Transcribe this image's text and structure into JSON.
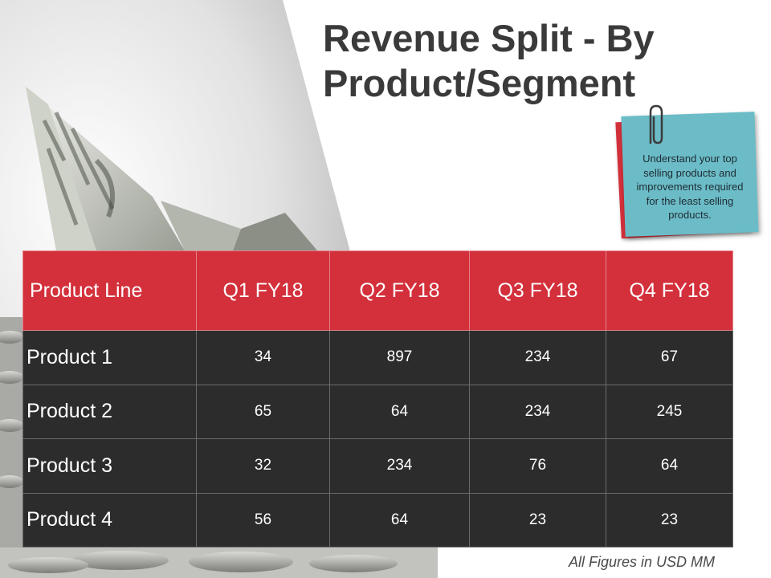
{
  "slide": {
    "title_line1": "Revenue Split - By",
    "title_line2": "Product/Segment",
    "note": "Understand your top selling products and improvements required for the least selling products.",
    "footnote": "All Figures in USD MM"
  },
  "table": {
    "headers": [
      "Product Line",
      "Q1 FY18",
      "Q2 FY18",
      "Q3 FY18",
      "Q4 FY18"
    ],
    "rows": [
      [
        "Product 1",
        "34",
        "897",
        "234",
        "67"
      ],
      [
        "Product 2",
        "65",
        "64",
        "234",
        "245"
      ],
      [
        "Product 3",
        "32",
        "234",
        "76",
        "64"
      ],
      [
        "Product 4",
        "56",
        "64",
        "23",
        "23"
      ]
    ]
  },
  "colors": {
    "accent_red": "#d3303b",
    "note_blue": "#6bbcc7",
    "table_dark": "#2c2c2c",
    "title_grey": "#3a3a3a"
  },
  "icons": [
    "paper-boat-image",
    "coins-image",
    "paperclip-icon"
  ]
}
